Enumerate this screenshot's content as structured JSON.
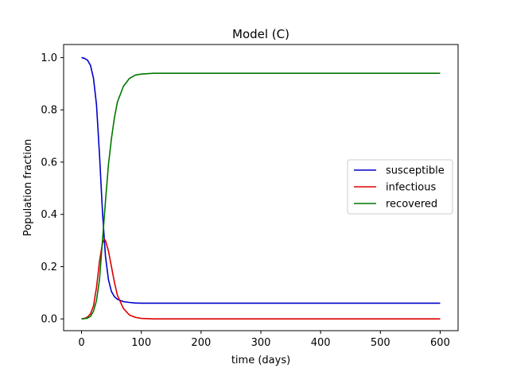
{
  "chart_data": {
    "type": "line",
    "title": "Model (C)",
    "xlabel": "time (days)",
    "ylabel": "Population fraction",
    "xlim": [
      -30,
      630
    ],
    "ylim": [
      -0.045,
      1.05
    ],
    "xticks": [
      0,
      100,
      200,
      300,
      400,
      500,
      600
    ],
    "yticks": [
      0.0,
      0.2,
      0.4,
      0.6,
      0.8,
      1.0
    ],
    "xtick_labels": [
      "0",
      "100",
      "200",
      "300",
      "400",
      "500",
      "600"
    ],
    "ytick_labels": [
      "0.0",
      "0.2",
      "0.4",
      "0.6",
      "0.8",
      "1.0"
    ],
    "grid": false,
    "legend_position": "center-right",
    "series": [
      {
        "name": "susceptible",
        "color": "#0000cc",
        "x": [
          0,
          5,
          10,
          15,
          20,
          25,
          30,
          35,
          40,
          45,
          50,
          55,
          60,
          70,
          80,
          90,
          100,
          120,
          150,
          200,
          300,
          400,
          500,
          600
        ],
        "y": [
          1.0,
          0.997,
          0.99,
          0.97,
          0.92,
          0.82,
          0.63,
          0.41,
          0.24,
          0.15,
          0.105,
          0.085,
          0.075,
          0.066,
          0.063,
          0.061,
          0.06,
          0.06,
          0.06,
          0.06,
          0.06,
          0.06,
          0.06,
          0.06
        ]
      },
      {
        "name": "infectious",
        "color": "#dd0000",
        "x": [
          0,
          5,
          10,
          15,
          20,
          25,
          30,
          35,
          38,
          40,
          45,
          50,
          55,
          60,
          70,
          80,
          90,
          100,
          120,
          150,
          200,
          300,
          400,
          500,
          600
        ],
        "y": [
          0.0,
          0.002,
          0.007,
          0.02,
          0.05,
          0.12,
          0.22,
          0.29,
          0.305,
          0.3,
          0.26,
          0.2,
          0.14,
          0.09,
          0.04,
          0.015,
          0.006,
          0.002,
          0.0,
          0.0,
          0.0,
          0.0,
          0.0,
          0.0,
          0.0
        ]
      },
      {
        "name": "recovered",
        "color": "#007700",
        "x": [
          0,
          5,
          10,
          15,
          20,
          25,
          30,
          35,
          40,
          45,
          50,
          55,
          60,
          70,
          80,
          90,
          100,
          120,
          150,
          200,
          300,
          400,
          500,
          600
        ],
        "y": [
          0.0,
          0.001,
          0.003,
          0.01,
          0.03,
          0.07,
          0.15,
          0.3,
          0.45,
          0.59,
          0.69,
          0.77,
          0.83,
          0.89,
          0.92,
          0.933,
          0.937,
          0.94,
          0.94,
          0.94,
          0.94,
          0.94,
          0.94,
          0.94
        ]
      }
    ]
  }
}
